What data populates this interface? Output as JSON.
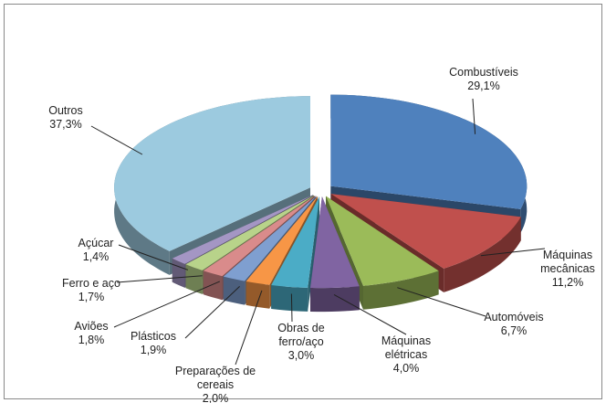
{
  "chart_data": {
    "type": "pie",
    "categories": [
      "Combustíveis",
      "Máquinas mecânicas",
      "Automóveis",
      "Máquinas elétricas",
      "Obras de ferro/aço",
      "Preparações de cereais",
      "Plásticos",
      "Aviões",
      "Ferro e aço",
      "Açúcar",
      "Outros"
    ],
    "values": [
      29.1,
      11.2,
      6.7,
      4.0,
      3.0,
      2.0,
      1.9,
      1.8,
      1.7,
      1.4,
      37.3
    ],
    "value_labels": [
      "29,1%",
      "11,2%",
      "6,7%",
      "4,0%",
      "3,0%",
      "2,0%",
      "1,9%",
      "1,8%",
      "1,7%",
      "1,4%",
      "37,3%"
    ],
    "colors": [
      "#4f81bd",
      "#c0504d",
      "#9bbb59",
      "#8064a2",
      "#4bacc6",
      "#f79646",
      "#7f9fd0",
      "#d98b8b",
      "#b8d38a",
      "#a496c4",
      "#9ccadf"
    ]
  }
}
